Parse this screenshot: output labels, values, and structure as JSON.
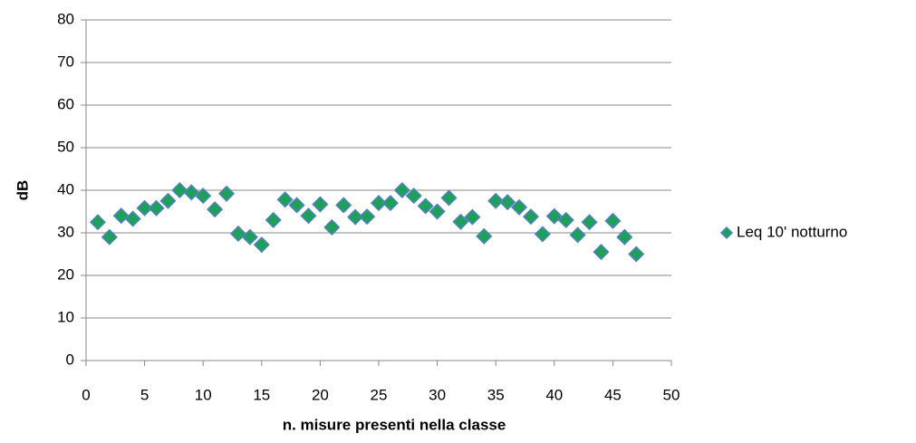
{
  "chart_data": {
    "type": "scatter",
    "xlabel": "n. misure presenti nella classe",
    "ylabel": "dB",
    "series": [
      {
        "name": "Leq 10' notturno",
        "color": "#1fa05a",
        "edgecolor": "#4f81bd",
        "x": [
          1,
          2,
          3,
          4,
          5,
          6,
          7,
          8,
          9,
          10,
          11,
          12,
          13,
          14,
          15,
          16,
          17,
          18,
          19,
          20,
          21,
          22,
          23,
          24,
          25,
          26,
          27,
          28,
          29,
          30,
          31,
          32,
          33,
          34,
          35,
          36,
          37,
          38,
          39,
          40,
          41,
          42,
          43,
          44,
          45,
          46,
          47
        ],
        "values": [
          32.5,
          29,
          34,
          33.3,
          35.8,
          35.8,
          37.5,
          40,
          39.5,
          38.7,
          35.5,
          39.2,
          29.8,
          29,
          27.2,
          33,
          37.8,
          36.5,
          34,
          36.7,
          31.3,
          36.5,
          33.7,
          33.8,
          37,
          37,
          40,
          38.7,
          36.3,
          35,
          38.2,
          32.6,
          33.7,
          29.2,
          37.5,
          37.2,
          36,
          33.8,
          29.7,
          33.9,
          33,
          29.5,
          32.5,
          25.5,
          32.8,
          29,
          25
        ]
      }
    ],
    "xlim": [
      0,
      50
    ],
    "xticks": [
      0,
      5,
      10,
      15,
      20,
      25,
      30,
      35,
      40,
      45,
      50
    ],
    "ylim": [
      0,
      80
    ],
    "yticks": [
      0,
      10,
      20,
      30,
      40,
      50,
      60,
      70,
      80
    ],
    "grid": true,
    "legend": "right"
  }
}
